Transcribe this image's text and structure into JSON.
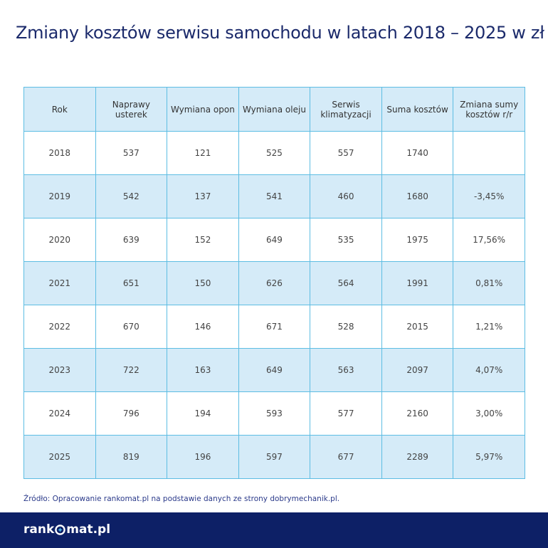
{
  "header": {
    "title": "Zmiany kosztów serwisu samochodu w latach 2018 – 2025 w zł"
  },
  "table": {
    "columns": [
      "Rok",
      "Naprawy usterek",
      "Wymiana opon",
      "Wymiana oleju",
      "Serwis klimatyzacji",
      "Suma kosztów",
      "Zmiana sumy kosztów r/r"
    ],
    "rows": [
      [
        2018,
        537,
        121,
        525,
        557,
        1740,
        null
      ],
      [
        2019,
        542,
        137,
        541,
        460,
        1680,
        "-3,45%"
      ],
      [
        2020,
        639,
        152,
        649,
        535,
        1975,
        "17,56%"
      ],
      [
        2021,
        651,
        150,
        626,
        564,
        1991,
        "0,81%"
      ],
      [
        2022,
        670,
        146,
        671,
        528,
        2015,
        "1,21%"
      ],
      [
        2023,
        722,
        163,
        649,
        563,
        2097,
        "4,07%"
      ],
      [
        2024,
        796,
        194,
        593,
        577,
        2160,
        "3,00%"
      ],
      [
        2025,
        819,
        196,
        597,
        677,
        2289,
        "5,97%"
      ]
    ]
  },
  "source": "Źródło: Opracowanie rankomat.pl na podstawie danych ze strony dobrymechanik.pl.",
  "footer": {
    "logo": [
      "rank",
      "mat.pl"
    ]
  }
}
